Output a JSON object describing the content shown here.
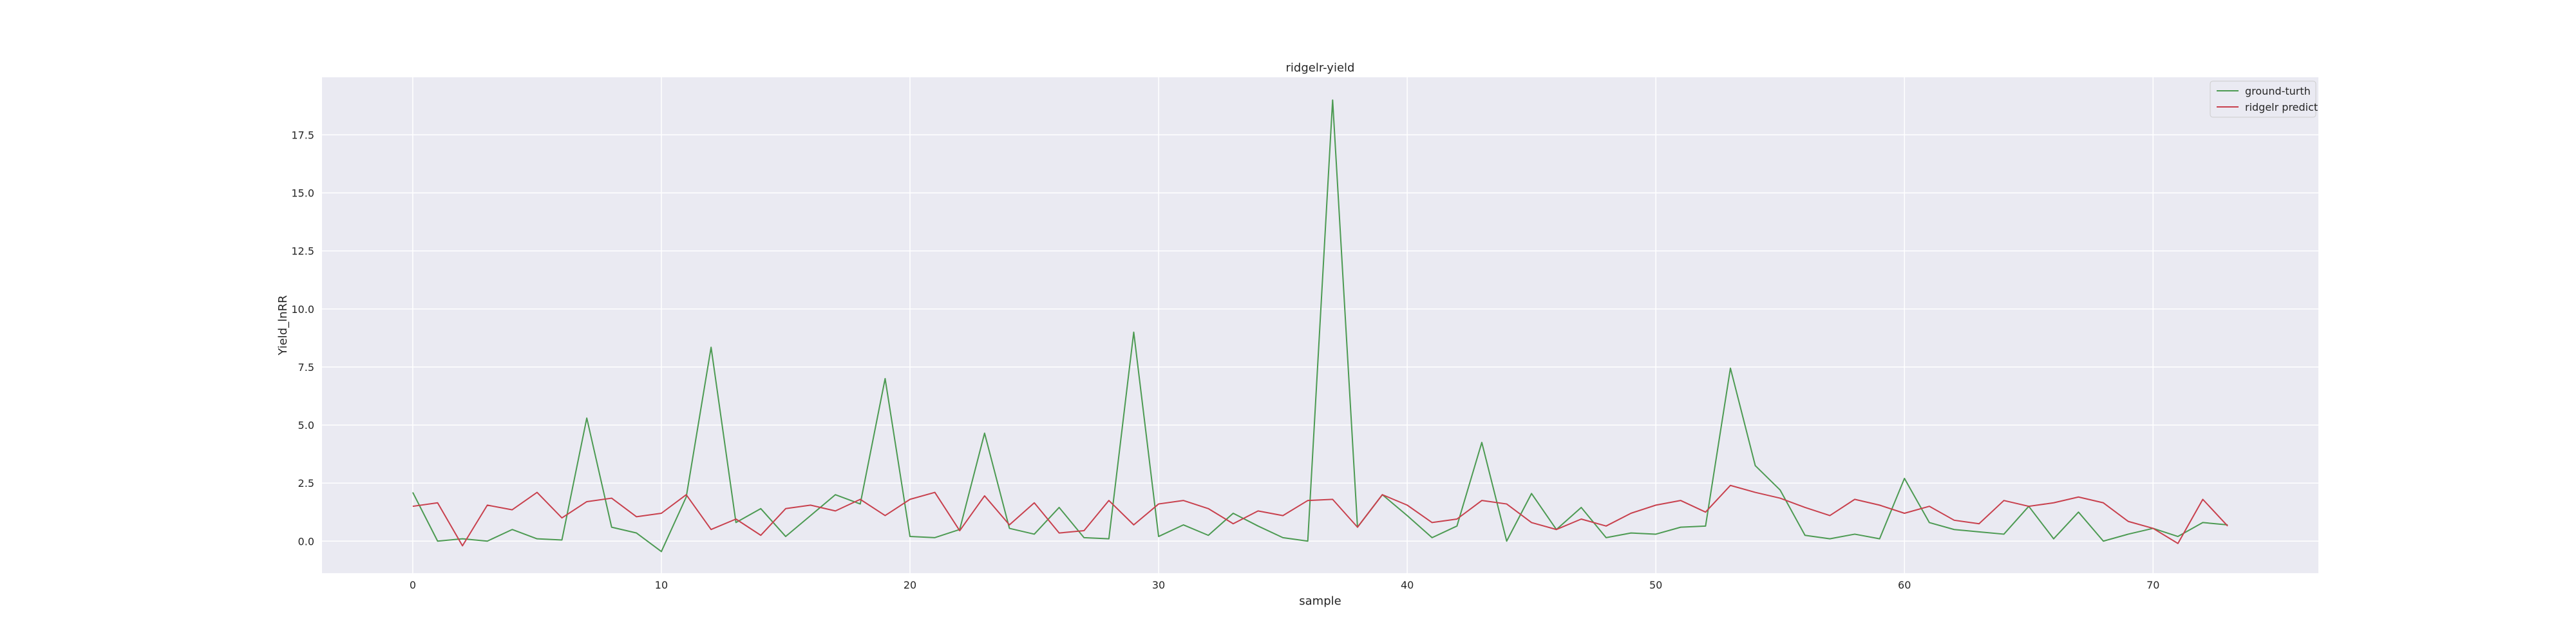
{
  "chart_data": {
    "type": "line",
    "title": "ridgelr-yield",
    "xlabel": "sample",
    "ylabel": "Yield_lnRR",
    "xlim": [
      -3.65,
      76.65
    ],
    "ylim": [
      -1.38,
      19.98
    ],
    "xticks": [
      0,
      10,
      20,
      30,
      40,
      50,
      60,
      70
    ],
    "xtick_labels": [
      "0",
      "10",
      "20",
      "30",
      "40",
      "50",
      "60",
      "70"
    ],
    "yticks": [
      0.0,
      2.5,
      5.0,
      7.5,
      10.0,
      12.5,
      15.0,
      17.5
    ],
    "ytick_labels": [
      "0.0",
      "2.5",
      "5.0",
      "7.5",
      "10.0",
      "12.5",
      "15.0",
      "17.5"
    ],
    "grid": true,
    "legend_position": "top-right",
    "x": [
      0,
      1,
      2,
      3,
      4,
      5,
      6,
      7,
      8,
      9,
      10,
      11,
      12,
      13,
      14,
      15,
      16,
      17,
      18,
      19,
      20,
      21,
      22,
      23,
      24,
      25,
      26,
      27,
      28,
      29,
      30,
      31,
      32,
      33,
      34,
      35,
      36,
      37,
      38,
      39,
      40,
      41,
      42,
      43,
      44,
      45,
      46,
      47,
      48,
      49,
      50,
      51,
      52,
      53,
      54,
      55,
      56,
      57,
      58,
      59,
      60,
      61,
      62,
      63,
      64,
      65,
      66,
      67,
      68,
      69,
      70,
      71,
      72,
      73
    ],
    "series": [
      {
        "name": "ground-turth",
        "color": "#4c9a52",
        "values": [
          2.1,
          0.0,
          0.1,
          0.0,
          0.5,
          0.1,
          0.05,
          5.3,
          0.6,
          0.35,
          -0.45,
          1.9,
          8.35,
          0.8,
          1.4,
          0.2,
          1.1,
          2.0,
          1.6,
          7.0,
          0.2,
          0.15,
          0.5,
          4.65,
          0.55,
          0.3,
          1.45,
          0.15,
          0.1,
          9.0,
          0.2,
          0.7,
          0.25,
          1.2,
          0.65,
          0.15,
          0.0,
          19.0,
          0.6,
          2.0,
          1.1,
          0.15,
          0.65,
          4.25,
          0.0,
          2.05,
          0.5,
          1.45,
          0.15,
          0.35,
          0.3,
          0.6,
          0.65,
          7.45,
          3.25,
          2.2,
          0.25,
          0.1,
          0.3,
          0.1,
          2.7,
          0.8,
          0.5,
          0.4,
          0.3,
          1.5,
          0.1,
          1.25,
          0.0,
          0.3,
          0.55,
          0.2,
          0.8,
          0.7
        ]
      },
      {
        "name": "ridgelr predict",
        "color": "#c8404d",
        "values": [
          1.5,
          1.65,
          -0.2,
          1.55,
          1.35,
          2.1,
          1.0,
          1.7,
          1.85,
          1.05,
          1.2,
          2.0,
          0.5,
          0.95,
          0.25,
          1.4,
          1.55,
          1.3,
          1.8,
          1.1,
          1.8,
          2.1,
          0.45,
          1.95,
          0.7,
          1.65,
          0.35,
          0.45,
          1.75,
          0.7,
          1.6,
          1.75,
          1.4,
          0.75,
          1.3,
          1.1,
          1.75,
          1.8,
          0.6,
          2.0,
          1.55,
          0.8,
          0.95,
          1.75,
          1.6,
          0.8,
          0.5,
          0.95,
          0.65,
          1.2,
          1.55,
          1.75,
          1.25,
          2.4,
          2.1,
          1.85,
          1.45,
          1.1,
          1.8,
          1.55,
          1.2,
          1.5,
          0.9,
          0.75,
          1.75,
          1.5,
          1.65,
          1.9,
          1.65,
          0.85,
          0.55,
          -0.1,
          1.8,
          0.65
        ]
      }
    ]
  }
}
